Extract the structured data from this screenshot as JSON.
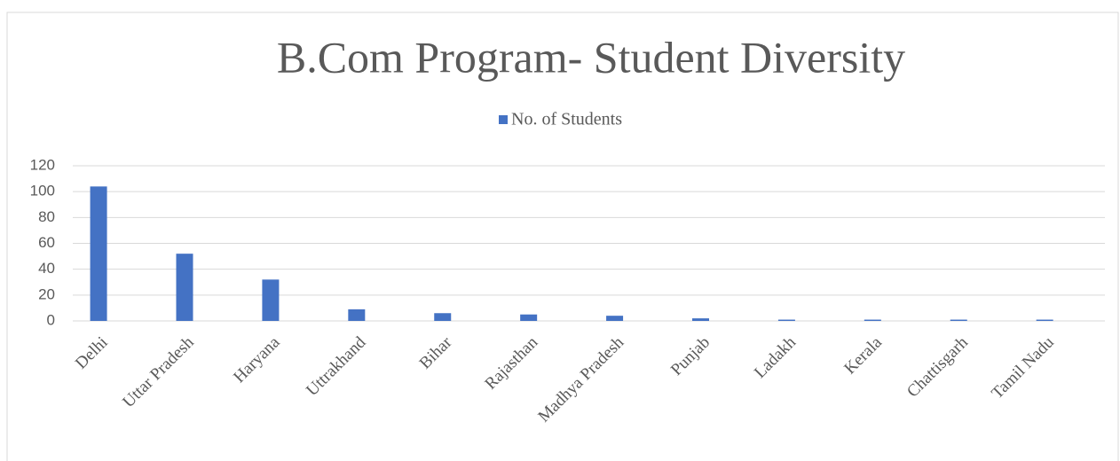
{
  "chart_data": {
    "type": "bar",
    "title": "B.Com Program- Student Diversity",
    "legend": "top",
    "grid": true,
    "categories": [
      "Delhi",
      "Uttar Pradesh",
      "Haryana",
      "Uttrakhand",
      "Bihar",
      "Rajasthan",
      "Madhya Pradesh",
      "Punjab",
      "Ladakh",
      "Kerala",
      "Chattisgarh",
      "Tamil Nadu"
    ],
    "series": [
      {
        "name": "No. of Students",
        "color": "#4472c4",
        "values": [
          104,
          52,
          32,
          9,
          6,
          5,
          4,
          2,
          1,
          1,
          1,
          1
        ]
      }
    ],
    "ylim": [
      0,
      120
    ],
    "yticks": [
      0,
      20,
      40,
      60,
      80,
      100,
      120
    ]
  }
}
